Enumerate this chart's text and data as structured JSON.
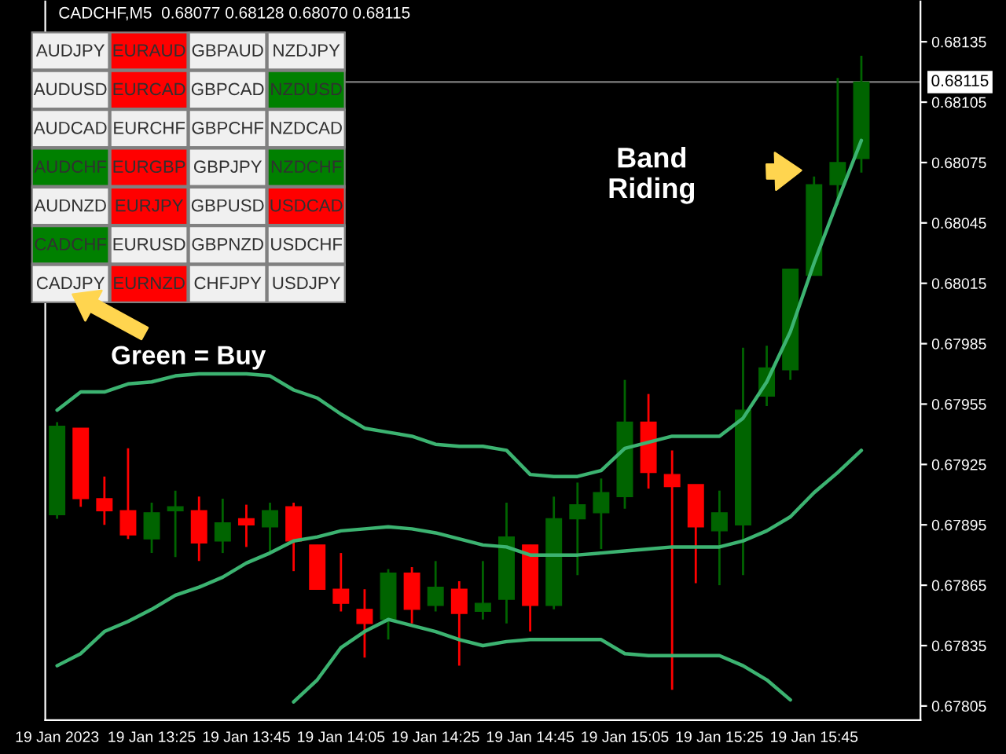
{
  "chart_data": [
    {
      "type": "candlestick",
      "title": "CADCHF,M5  0.68077 0.68128 0.68070 0.68115",
      "categories": [
        "19 Jan 2023",
        null,
        null,
        null,
        "19 Jan 13:25",
        null,
        null,
        null,
        "19 Jan 13:45",
        null,
        null,
        null,
        "19 Jan 14:05",
        null,
        null,
        null,
        "19 Jan 14:25",
        null,
        null,
        null,
        "19 Jan 14:45",
        null,
        null,
        null,
        "19 Jan 15:05",
        null,
        null,
        null,
        "19 Jan 15:25",
        null,
        null,
        null,
        "19 Jan 15:45",
        null,
        null
      ],
      "ohlc": [
        [
          0.679,
          0.67946,
          0.67898,
          0.67944
        ],
        [
          0.67943,
          0.67943,
          0.67904,
          0.67908
        ],
        [
          0.67908,
          0.67919,
          0.67895,
          0.67902
        ],
        [
          0.67902,
          0.67933,
          0.67888,
          0.6789
        ],
        [
          0.67888,
          0.67906,
          0.67881,
          0.67901
        ],
        [
          0.67902,
          0.67912,
          0.67879,
          0.67904
        ],
        [
          0.67902,
          0.67909,
          0.67877,
          0.67886
        ],
        [
          0.67887,
          0.67908,
          0.67881,
          0.67896
        ],
        [
          0.67898,
          0.67905,
          0.67884,
          0.67895
        ],
        [
          0.67894,
          0.67906,
          0.67881,
          0.67902
        ],
        [
          0.67904,
          0.67906,
          0.67872,
          0.67887
        ],
        [
          0.67885,
          0.67885,
          0.67863,
          0.67863
        ],
        [
          0.67863,
          0.67881,
          0.67852,
          0.67856
        ],
        [
          0.67853,
          0.67863,
          0.67829,
          0.67846
        ],
        [
          0.67848,
          0.67873,
          0.67838,
          0.67871
        ],
        [
          0.67871,
          0.67874,
          0.67846,
          0.67853
        ],
        [
          0.67855,
          0.67877,
          0.67852,
          0.67864
        ],
        [
          0.67863,
          0.67867,
          0.67825,
          0.67851
        ],
        [
          0.67852,
          0.67877,
          0.67848,
          0.67856
        ],
        [
          0.67858,
          0.67906,
          0.67846,
          0.67889
        ],
        [
          0.67885,
          0.67885,
          0.67842,
          0.67855
        ],
        [
          0.67855,
          0.67909,
          0.67853,
          0.67898
        ],
        [
          0.67898,
          0.67916,
          0.6787,
          0.67905
        ],
        [
          0.67901,
          0.67918,
          0.67883,
          0.67911
        ],
        [
          0.67909,
          0.67967,
          0.67903,
          0.67946
        ],
        [
          0.67946,
          0.6796,
          0.67913,
          0.67921
        ],
        [
          0.6792,
          0.67932,
          0.67813,
          0.67914
        ],
        [
          0.67915,
          0.67915,
          0.67866,
          0.67894
        ],
        [
          0.67892,
          0.67912,
          0.67865,
          0.67901
        ],
        [
          0.67895,
          0.67983,
          0.6787,
          0.67952
        ],
        [
          0.67959,
          0.67984,
          0.67954,
          0.67973
        ],
        [
          0.67972,
          0.68022,
          0.67967,
          0.68022
        ],
        [
          0.68019,
          0.68068,
          0.68019,
          0.68064
        ],
        [
          0.68064,
          0.68117,
          0.68054,
          0.68075
        ],
        [
          0.68077,
          0.68128,
          0.6807,
          0.68115
        ]
      ],
      "colors": [
        "#006400",
        "#ff0000",
        "#ff0000",
        "#ff0000",
        "#006400",
        "#006400",
        "#ff0000",
        "#006400",
        "#ff0000",
        "#006400",
        "#ff0000",
        "#ff0000",
        "#ff0000",
        "#ff0000",
        "#006400",
        "#ff0000",
        "#006400",
        "#ff0000",
        "#006400",
        "#006400",
        "#ff0000",
        "#006400",
        "#006400",
        "#006400",
        "#006400",
        "#ff0000",
        "#ff0000",
        "#ff0000",
        "#006400",
        "#006400",
        "#006400",
        "#006400",
        "#006400",
        "#006400",
        "#006400"
      ],
      "series": [
        {
          "type": "line",
          "color": "#3cb371",
          "values": [
            0.67952,
            0.67961,
            0.67961,
            0.67965,
            0.67966,
            0.67969,
            0.6797,
            0.6797,
            0.6797,
            0.67969,
            0.67962,
            0.67958,
            0.6795,
            0.67943,
            0.67941,
            0.67939,
            0.67935,
            0.67934,
            0.67934,
            0.67932,
            0.6792,
            0.67919,
            0.67919,
            0.67922,
            0.67933,
            0.67936,
            0.67939,
            0.67939,
            0.67939,
            0.67948,
            0.67966,
            0.67991,
            0.68025,
            0.68056,
            0.68086
          ]
        },
        {
          "type": "line",
          "color": "#3cb371",
          "values": [
            0.67825,
            0.67831,
            0.67842,
            0.67847,
            0.67853,
            0.6786,
            0.67864,
            0.67869,
            0.67876,
            0.67881,
            0.67887,
            0.67889,
            0.67892,
            0.67893,
            0.67894,
            0.67893,
            0.67891,
            0.67888,
            0.67885,
            0.67884,
            0.6788,
            0.6788,
            0.6788,
            0.67881,
            0.67882,
            0.67883,
            0.67884,
            0.67884,
            0.67884,
            0.67887,
            0.67892,
            0.67899,
            0.67911,
            0.67921,
            0.67932
          ]
        },
        {
          "type": "line",
          "color": "#3cb371",
          "values": [
            null,
            null,
            null,
            null,
            null,
            null,
            null,
            null,
            null,
            null,
            0.67807,
            0.67818,
            0.67834,
            0.67842,
            0.67848,
            0.67845,
            0.67842,
            0.67838,
            0.67835,
            0.67837,
            0.67838,
            0.67838,
            0.67838,
            0.67838,
            0.67831,
            0.6783,
            0.6783,
            0.6783,
            0.6783,
            0.67825,
            0.67818,
            0.67808,
            null,
            null,
            null
          ]
        }
      ],
      "ylim": [
        0.67798,
        0.68155
      ],
      "yticks": [
        0.67805,
        0.67835,
        0.67865,
        0.67895,
        0.67925,
        0.67955,
        0.67985,
        0.68015,
        0.68045,
        0.68075,
        0.68105,
        0.68135
      ],
      "ref_lines": [
        {
          "axis": "y",
          "value": 0.68115,
          "label": "0.68115",
          "color": "#808080"
        }
      ],
      "annotations": [
        "Band Riding"
      ]
    },
    {
      "type": "other",
      "categories": [
        "AUDJPY",
        "EURAUD",
        "GBPAUD",
        "NZDJPY",
        "AUDUSD",
        "EURCAD",
        "GBPCAD",
        "NZDUSD",
        "AUDCAD",
        "EURCHF",
        "GBPCHF",
        "NZDCAD",
        "AUDCHF",
        "EURGBP",
        "GBPJPY",
        "NZDCHF",
        "AUDNZD",
        "EURJPY",
        "GBPUSD",
        "USDCAD",
        "CADCHF",
        "EURUSD",
        "GBPNZD",
        "USDCHF",
        "CADJPY",
        "EURNZD",
        "CHFJPY",
        "USDJPY"
      ],
      "colors": [
        "#f0f0f0",
        "#ff0000",
        "#f0f0f0",
        "#f0f0f0",
        "#f0f0f0",
        "#ff0000",
        "#f0f0f0",
        "#008000",
        "#f0f0f0",
        "#f0f0f0",
        "#f0f0f0",
        "#f0f0f0",
        "#008000",
        "#ff0000",
        "#f0f0f0",
        "#008000",
        "#f0f0f0",
        "#ff0000",
        "#f0f0f0",
        "#ff0000",
        "#008000",
        "#f0f0f0",
        "#f0f0f0",
        "#f0f0f0",
        "#f0f0f0",
        "#ff0000",
        "#f0f0f0",
        "#f0f0f0"
      ],
      "annotations": [
        "Green = Buy"
      ]
    }
  ]
}
